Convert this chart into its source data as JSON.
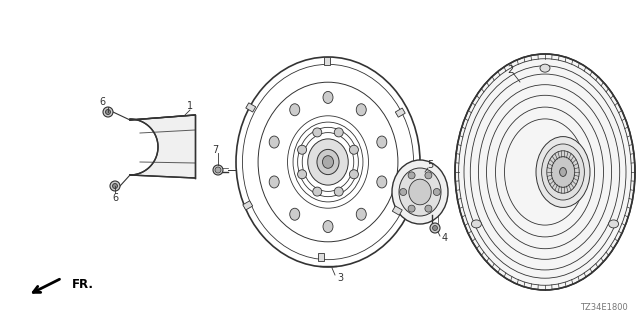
{
  "bg_color": "#ffffff",
  "fig_width": 6.4,
  "fig_height": 3.2,
  "dpi": 100,
  "diagram_code": "TZ34E1800",
  "fr_label": "FR.",
  "lc": "#555555",
  "lc_dark": "#333333",
  "lc_light": "#888888"
}
